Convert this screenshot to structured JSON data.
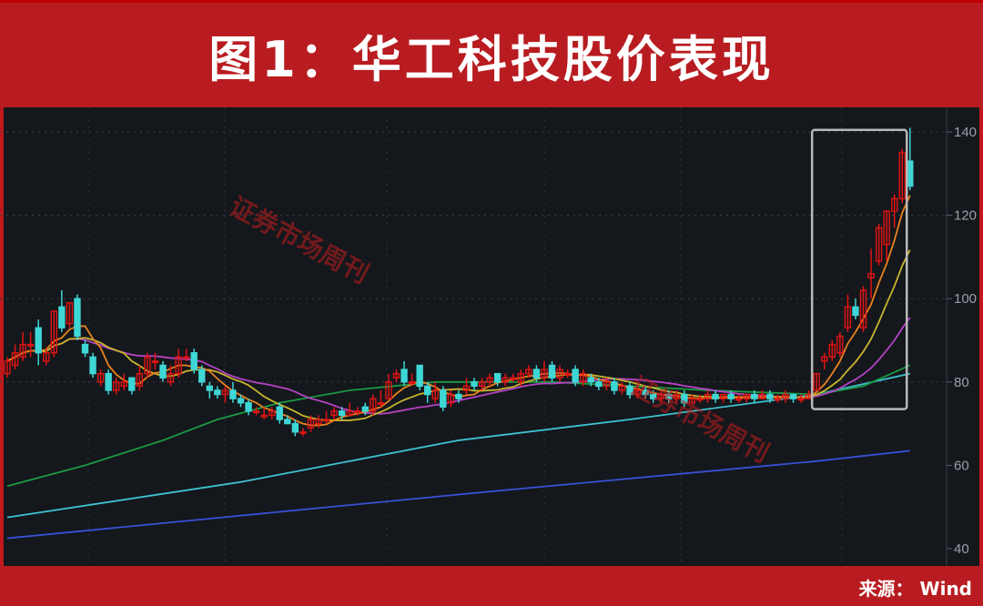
{
  "title": "图1：华工科技股价表现",
  "source": "来源： Wind",
  "watermark": "证券市场周刊",
  "chart_data": {
    "type": "candlestick",
    "title": "图1：华工科技股价表现",
    "ylim": [
      40,
      145
    ],
    "y_ticks": [
      "140",
      "120",
      "100",
      "80",
      "60",
      "40"
    ],
    "y_tick_values": [
      140,
      120,
      100,
      80,
      60,
      40
    ],
    "grid": true,
    "colors": {
      "up": "#e01414",
      "down": "#3fd6d6",
      "ma5": "#e8821e",
      "ma10": "#c9b52e",
      "ma20": "#b443c4",
      "ma60": "#1b9a44",
      "ma120": "#3ec2d0",
      "ma250": "#3552d6",
      "highlight": "#b8b8b8"
    },
    "ohlc": [
      [
        82,
        85,
        86,
        81
      ],
      [
        84,
        87,
        89,
        83
      ],
      [
        86,
        89,
        92,
        85
      ],
      [
        89,
        89,
        92,
        86
      ],
      [
        93,
        87,
        95,
        84
      ],
      [
        85,
        87,
        88,
        84
      ],
      [
        87,
        97,
        97,
        86
      ],
      [
        98,
        93,
        102,
        92
      ],
      [
        94,
        99,
        99,
        93
      ],
      [
        100,
        91,
        101,
        90
      ],
      [
        89,
        87,
        90,
        86
      ],
      [
        86,
        82,
        87,
        81
      ],
      [
        80,
        82,
        83,
        79
      ],
      [
        82,
        78,
        83,
        77
      ],
      [
        78,
        80,
        81,
        77
      ],
      [
        79,
        80,
        82,
        78
      ],
      [
        81,
        78,
        81,
        77
      ],
      [
        79,
        82,
        84,
        78
      ],
      [
        82,
        86,
        87,
        81
      ],
      [
        85,
        85,
        87,
        83
      ],
      [
        84,
        81,
        85,
        80
      ],
      [
        80,
        82,
        84,
        79
      ],
      [
        82,
        86,
        88,
        81
      ],
      [
        86,
        86,
        88,
        85
      ],
      [
        87,
        83,
        88,
        82
      ],
      [
        83,
        80,
        84,
        79
      ],
      [
        79,
        78,
        80,
        76
      ],
      [
        78,
        77,
        79,
        76
      ],
      [
        77,
        78,
        79,
        75
      ],
      [
        78,
        76,
        80,
        75
      ],
      [
        76,
        75,
        77,
        74
      ],
      [
        75,
        73,
        76,
        72
      ],
      [
        73,
        73,
        74,
        72
      ],
      [
        72,
        72,
        74,
        71
      ],
      [
        72,
        73,
        74,
        71
      ],
      [
        74,
        71,
        75,
        70
      ],
      [
        71,
        70,
        72,
        70
      ],
      [
        70,
        68,
        71,
        67
      ],
      [
        68,
        68,
        69,
        67
      ],
      [
        69,
        71,
        72,
        68
      ],
      [
        70,
        71,
        72,
        69
      ],
      [
        71,
        71,
        73,
        70
      ],
      [
        72,
        73,
        74,
        71
      ],
      [
        73,
        72,
        74,
        71
      ],
      [
        72,
        73,
        75,
        72
      ],
      [
        73,
        73,
        74,
        72
      ],
      [
        74,
        73,
        75,
        72
      ],
      [
        73,
        76,
        77,
        72
      ],
      [
        75,
        75,
        78,
        74
      ],
      [
        76,
        80,
        82,
        76
      ],
      [
        81,
        82,
        83,
        80
      ],
      [
        83,
        80,
        85,
        79
      ],
      [
        80,
        80,
        82,
        79
      ],
      [
        84,
        79,
        84,
        78
      ],
      [
        79,
        77,
        80,
        75
      ],
      [
        76,
        78,
        80,
        75
      ],
      [
        78,
        74,
        79,
        73
      ],
      [
        75,
        77,
        78,
        74
      ],
      [
        77,
        76,
        78,
        75
      ],
      [
        78,
        79,
        81,
        77
      ],
      [
        80,
        79,
        81,
        78
      ],
      [
        79,
        80,
        81,
        78
      ],
      [
        80,
        81,
        82,
        79
      ],
      [
        82,
        80,
        82,
        79
      ],
      [
        80,
        81,
        82,
        79
      ],
      [
        81,
        81,
        82,
        80
      ],
      [
        80,
        82,
        83,
        79
      ],
      [
        82,
        83,
        84,
        81
      ],
      [
        83,
        81,
        84,
        80
      ],
      [
        81,
        83,
        85,
        80
      ],
      [
        84,
        81,
        85,
        80
      ],
      [
        81,
        83,
        84,
        80
      ],
      [
        82,
        82,
        83,
        81
      ],
      [
        83,
        80,
        84,
        79
      ],
      [
        80,
        82,
        83,
        79
      ],
      [
        81,
        80,
        82,
        79
      ],
      [
        80,
        79,
        81,
        78
      ],
      [
        79,
        80,
        81,
        78
      ],
      [
        80,
        78,
        81,
        77
      ],
      [
        78,
        79,
        80,
        77
      ],
      [
        79,
        77,
        80,
        76
      ],
      [
        77,
        78,
        79,
        76
      ],
      [
        78,
        77,
        79,
        76
      ],
      [
        77,
        76,
        78,
        75
      ],
      [
        76,
        77,
        78,
        75
      ],
      [
        77,
        76,
        78,
        75
      ],
      [
        76,
        77,
        78,
        75
      ],
      [
        77,
        75,
        78,
        74
      ],
      [
        75,
        76,
        77,
        75
      ],
      [
        76,
        76,
        77,
        75
      ],
      [
        76,
        77,
        78,
        75
      ],
      [
        77,
        76,
        78,
        75
      ],
      [
        76,
        77,
        77,
        75
      ],
      [
        77,
        76,
        78,
        75
      ],
      [
        76,
        76,
        77,
        75
      ],
      [
        76,
        77,
        77,
        75
      ],
      [
        77,
        76,
        78,
        75
      ],
      [
        76,
        77,
        78,
        76
      ],
      [
        77,
        76,
        78,
        75
      ],
      [
        76,
        76,
        77,
        75
      ],
      [
        76,
        77,
        78,
        75
      ],
      [
        77,
        76,
        77,
        75
      ],
      [
        76,
        76,
        77,
        75
      ],
      [
        76,
        77,
        78,
        76
      ],
      [
        78,
        82,
        82,
        78
      ],
      [
        85,
        86,
        87,
        83
      ],
      [
        86,
        89,
        90,
        85
      ],
      [
        87,
        91,
        92,
        86
      ],
      [
        93,
        98,
        101,
        92
      ],
      [
        98,
        96,
        100,
        95
      ],
      [
        93,
        102,
        103,
        92
      ],
      [
        105,
        106,
        112,
        100
      ],
      [
        109,
        117,
        118,
        108
      ],
      [
        113,
        121,
        121,
        109
      ],
      [
        121,
        124,
        125,
        117
      ],
      [
        124,
        135,
        136,
        123
      ],
      [
        133,
        127,
        141,
        126
      ]
    ],
    "moving_averages_computed": [
      5,
      10,
      20
    ],
    "long_moving_averages": {
      "ma60": [
        [
          0,
          55
        ],
        [
          10,
          60
        ],
        [
          20,
          66
        ],
        [
          27,
          71
        ],
        [
          35,
          75
        ],
        [
          44,
          78
        ],
        [
          55,
          80
        ],
        [
          70,
          80
        ],
        [
          90,
          78
        ],
        [
          104,
          77
        ],
        [
          110,
          79
        ],
        [
          116,
          84
        ]
      ],
      "ma120": [
        [
          0,
          47.5
        ],
        [
          30,
          56
        ],
        [
          58,
          66
        ],
        [
          80,
          71
        ],
        [
          104,
          77
        ],
        [
          116,
          82
        ]
      ],
      "ma250": [
        [
          0,
          42.5
        ],
        [
          58,
          53
        ],
        [
          104,
          61
        ],
        [
          116,
          63.5
        ]
      ]
    },
    "highlight": {
      "from_index": 104,
      "to_index": 115,
      "range": [
        73.5,
        140.5
      ]
    }
  }
}
